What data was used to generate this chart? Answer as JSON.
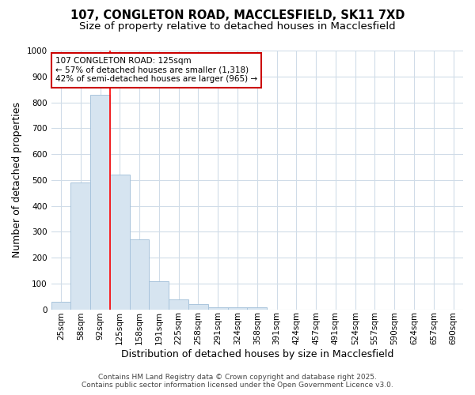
{
  "title1": "107, CONGLETON ROAD, MACCLESFIELD, SK11 7XD",
  "title2": "Size of property relative to detached houses in Macclesfield",
  "xlabel": "Distribution of detached houses by size in Macclesfield",
  "ylabel": "Number of detached properties",
  "categories": [
    "25sqm",
    "58sqm",
    "92sqm",
    "125sqm",
    "158sqm",
    "191sqm",
    "225sqm",
    "258sqm",
    "291sqm",
    "324sqm",
    "358sqm",
    "391sqm",
    "424sqm",
    "457sqm",
    "491sqm",
    "524sqm",
    "557sqm",
    "590sqm",
    "624sqm",
    "657sqm",
    "690sqm"
  ],
  "values": [
    30,
    490,
    830,
    520,
    270,
    107,
    37,
    20,
    8,
    8,
    8,
    0,
    0,
    0,
    0,
    0,
    0,
    0,
    0,
    0,
    0
  ],
  "bar_color": "#d6e4f0",
  "bar_edge_color": "#a8c4dc",
  "red_line_index": 3,
  "ylim": [
    0,
    1000
  ],
  "annotation_text": "107 CONGLETON ROAD: 125sqm\n← 57% of detached houses are smaller (1,318)\n42% of semi-detached houses are larger (965) →",
  "annotation_box_color": "#ffffff",
  "annotation_box_edge_color": "#cc0000",
  "footer_text1": "Contains HM Land Registry data © Crown copyright and database right 2025.",
  "footer_text2": "Contains public sector information licensed under the Open Government Licence v3.0.",
  "bg_color": "#ffffff",
  "grid_color": "#d0dce8",
  "title_fontsize": 10.5,
  "subtitle_fontsize": 9.5,
  "axis_label_fontsize": 9,
  "tick_fontsize": 7.5,
  "footer_fontsize": 6.5
}
